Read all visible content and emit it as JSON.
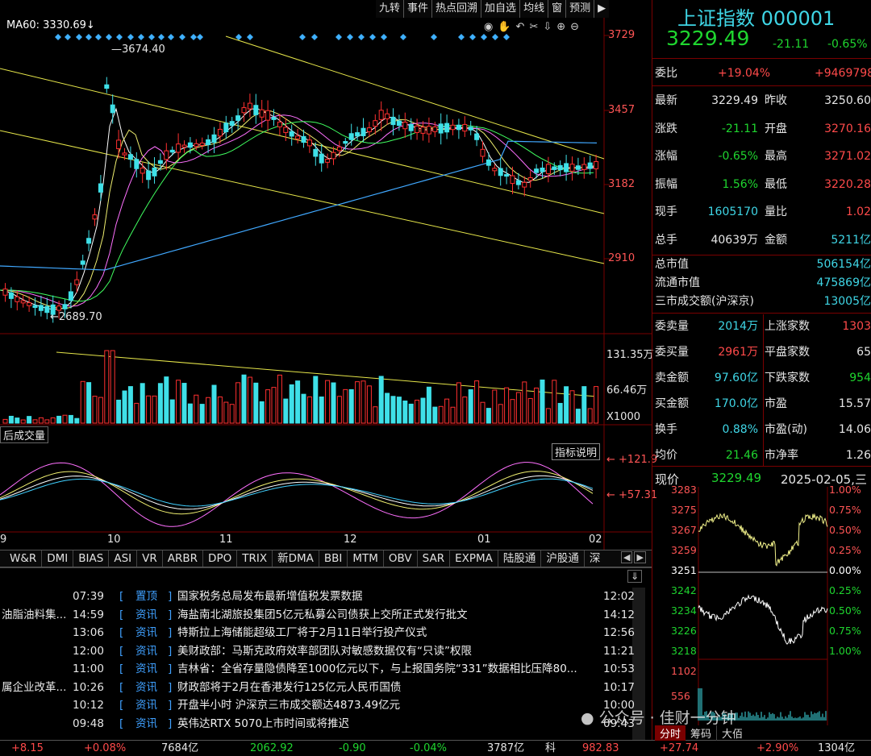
{
  "toolbar": {
    "items": [
      "九转",
      "事件",
      "热点回溯",
      "加自选",
      "均线",
      "窗",
      "预测",
      "▶"
    ]
  },
  "chart": {
    "ma_label": "MA60: 3330.69↓",
    "high_label": "3674.40",
    "low_label": "2689.70",
    "price_ticks": [
      "3729",
      "3457",
      "3182",
      "2910"
    ],
    "volume_ticks": [
      "131.35万",
      "66.46万",
      "X1000"
    ],
    "volume_title": "后成交量",
    "indicator_button": "指标说明",
    "indicator_ticks": [
      "+121.9",
      "+57.31"
    ],
    "months": [
      "9",
      "10",
      "11",
      "12",
      "01",
      "02"
    ],
    "tools": [
      "eye-icon",
      "hand-icon",
      "undo-icon",
      "scissors-icon",
      "pin-icon",
      "zoom-in-icon",
      "zoom-out-icon"
    ]
  },
  "tabs": [
    "W&R",
    "DMI",
    "BIAS",
    "ASI",
    "VR",
    "ARBR",
    "DPO",
    "TRIX",
    "新DMA",
    "BBI",
    "MTM",
    "OBV",
    "SAR",
    "EXPMA",
    "陆股通",
    "沪股通",
    "深"
  ],
  "news": [
    {
      "left": "",
      "date": "07:39",
      "cat": "置顶",
      "text": "国家税务总局发布最新增值税发票数据",
      "time": "12:02"
    },
    {
      "left": "油脂油料集...",
      "date": "14:59",
      "cat": "资讯",
      "text": "海盐南北湖旅投集团5亿元私募公司债获上交所正式发行批文",
      "time": "14:12"
    },
    {
      "left": "",
      "date": "13:06",
      "cat": "资讯",
      "text": "特斯拉上海储能超级工厂将于2月11日举行投产仪式",
      "time": "12:56"
    },
    {
      "left": "",
      "date": "12:00",
      "cat": "资讯",
      "text": "美财政部：马斯克政府效率部团队对敏感数据仅有“只读”权限",
      "time": "11:21"
    },
    {
      "left": "",
      "date": "11:00",
      "cat": "资讯",
      "text": "吉林省：全省存量隐债降至1000亿元以下，与上报国务院“331”数据相比压降80...",
      "time": "10:53"
    },
    {
      "left": "属企业改革...",
      "date": "10:26",
      "cat": "资讯",
      "text": "财政部将于2月在香港发行125亿元人民币国债",
      "time": "10:17"
    },
    {
      "left": "",
      "date": "10:12",
      "cat": "资讯",
      "text": "开盘半小时 沪深京三市成交额达4873.49亿元",
      "time": "10:00"
    },
    {
      "left": "",
      "date": "09:48",
      "cat": "资讯",
      "text": "英伟达RTX 5070上市时间或将推迟",
      "time": "09:43"
    }
  ],
  "status_bar": [
    "+8.15",
    "+0.08%",
    "7684亿",
    "2062.92",
    "-0.90",
    "-0.04%",
    "3787亿",
    "科",
    "982.83",
    "+27.74",
    "+2.90%",
    "1304亿"
  ],
  "quote": {
    "name": "上证指数",
    "code": "000001",
    "price": "3229.49",
    "change": "-21.11",
    "pct": "-0.65%",
    "weibi_label": "委比",
    "weibi": "+19.04%",
    "weicha": "+9469798",
    "rows": [
      {
        "l1": "最新",
        "v1": "3229.49",
        "l2": "昨收",
        "v2": "3250.60"
      },
      {
        "l1": "涨跌",
        "v1": "-21.11",
        "l2": "开盘",
        "v2": "3270.16"
      },
      {
        "l1": "涨幅",
        "v1": "-0.65%",
        "l2": "最高",
        "v2": "3271.02"
      },
      {
        "l1": "振幅",
        "v1": "1.56%",
        "l2": "最低",
        "v2": "3220.28"
      },
      {
        "l1": "现手",
        "v1": "1605170",
        "l2": "量比",
        "v2": "1.02"
      },
      {
        "l1": "总手",
        "v1": "40639万",
        "l2": "金额",
        "v2": "5211亿"
      }
    ],
    "mkt": [
      {
        "l": "总市值",
        "v": "506154亿"
      },
      {
        "l": "流通市值",
        "v": "475869亿"
      },
      {
        "l": "三市成交额(沪深京)",
        "v": "13005亿"
      }
    ],
    "rows2": [
      {
        "l1": "委卖量",
        "v1": "2014万",
        "l2": "上涨家数",
        "v2": "1303"
      },
      {
        "l1": "委买量",
        "v1": "2961万",
        "l2": "平盘家数",
        "v2": "65"
      },
      {
        "l1": "卖金额",
        "v1": "97.60亿",
        "l2": "下跌家数",
        "v2": "954"
      },
      {
        "l1": "买金额",
        "v1": "170.0亿",
        "l2": "市盈",
        "v2": "15.57"
      },
      {
        "l1": "换手",
        "v1": "0.88%",
        "l2": "市盈(动)",
        "v2": "14.06"
      },
      {
        "l1": "均价",
        "v1": "21.46",
        "l2": "市净率",
        "v2": "1.26"
      }
    ],
    "now_label": "现价",
    "now_price": "3229.49",
    "datetime": "2025-02-05,三",
    "mini_left": [
      "3283",
      "3275",
      "3267",
      "3259",
      "3251",
      "3242",
      "3234",
      "3226",
      "3218",
      "1102",
      "556"
    ],
    "mini_right": [
      "1.00%",
      "0.75%",
      "0.50%",
      "0.25%",
      "0.00%",
      "0.25%",
      "0.50%",
      "0.75%",
      "1.00%"
    ],
    "mini_tabs": [
      "分时",
      "筹码",
      "大佰"
    ],
    "watermark": "公众号 · 佳财一分钟"
  }
}
